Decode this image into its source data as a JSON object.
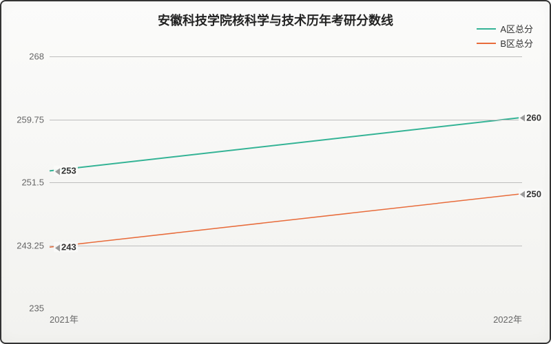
{
  "chart": {
    "type": "line",
    "title": "安徽科技学院核科学与技术历年考研分数线",
    "title_fontsize": 18,
    "background_top": "#fbfbfa",
    "background_bottom": "#eeeeeb",
    "border_color": "#333333",
    "grid_color": "#bdbdbd",
    "x_labels": [
      "2021年",
      "2022年"
    ],
    "ylim": [
      235,
      268
    ],
    "y_ticks": [
      235,
      243.25,
      251.5,
      259.75,
      268
    ],
    "axis_fontsize": 13,
    "series": [
      {
        "name": "A区总分",
        "color": "#33b395",
        "line_width": 2,
        "values": [
          253,
          260
        ]
      },
      {
        "name": "B区总分",
        "color": "#e86b3a",
        "line_width": 1.5,
        "values": [
          243,
          250
        ]
      }
    ],
    "legend_position": "top-right",
    "callout_fontsize": 13
  }
}
